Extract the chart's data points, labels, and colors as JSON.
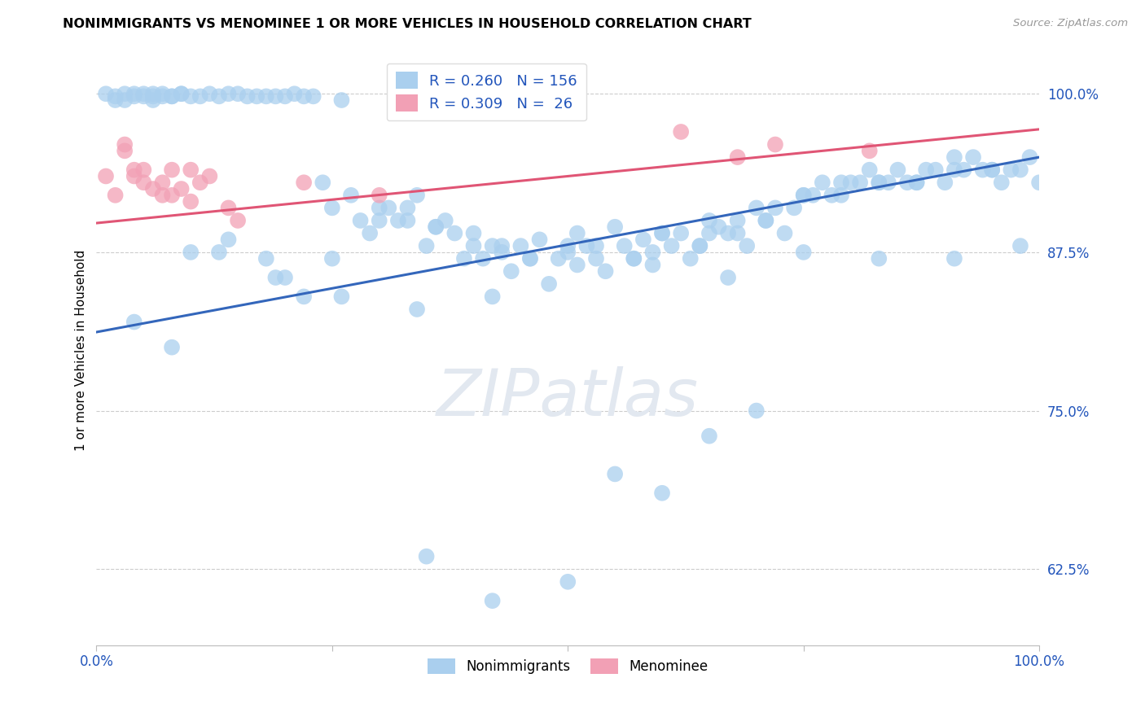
{
  "title": "NONIMMIGRANTS VS MENOMINEE 1 OR MORE VEHICLES IN HOUSEHOLD CORRELATION CHART",
  "source": "Source: ZipAtlas.com",
  "ylabel": "1 or more Vehicles in Household",
  "ytick_labels": [
    "62.5%",
    "75.0%",
    "87.5%",
    "100.0%"
  ],
  "ytick_values": [
    0.625,
    0.75,
    0.875,
    1.0
  ],
  "xrange": [
    0.0,
    1.0
  ],
  "yrange": [
    0.565,
    1.03
  ],
  "blue_R": 0.26,
  "blue_N": 156,
  "pink_R": 0.309,
  "pink_N": 26,
  "blue_color": "#aacfee",
  "pink_color": "#f2a0b5",
  "line_blue": "#3366bb",
  "line_pink": "#e05575",
  "watermark": "ZIPatlas",
  "legend_label_blue": "Nonimmigrants",
  "legend_label_pink": "Menominee",
  "blue_line_x": [
    0.0,
    1.0
  ],
  "blue_line_y": [
    0.812,
    0.95
  ],
  "pink_line_x": [
    0.0,
    1.0
  ],
  "pink_line_y": [
    0.898,
    0.972
  ],
  "blue_x": [
    0.01,
    0.02,
    0.03,
    0.04,
    0.04,
    0.05,
    0.06,
    0.06,
    0.07,
    0.07,
    0.08,
    0.09,
    0.1,
    0.12,
    0.14,
    0.15,
    0.17,
    0.18,
    0.2,
    0.22,
    0.24,
    0.25,
    0.27,
    0.28,
    0.29,
    0.3,
    0.31,
    0.32,
    0.33,
    0.34,
    0.35,
    0.36,
    0.37,
    0.38,
    0.39,
    0.4,
    0.41,
    0.42,
    0.43,
    0.44,
    0.45,
    0.46,
    0.47,
    0.48,
    0.49,
    0.5,
    0.51,
    0.52,
    0.53,
    0.54,
    0.55,
    0.56,
    0.57,
    0.58,
    0.59,
    0.6,
    0.61,
    0.62,
    0.63,
    0.64,
    0.65,
    0.65,
    0.66,
    0.67,
    0.68,
    0.69,
    0.7,
    0.71,
    0.72,
    0.73,
    0.74,
    0.75,
    0.76,
    0.77,
    0.78,
    0.79,
    0.8,
    0.81,
    0.82,
    0.83,
    0.84,
    0.85,
    0.86,
    0.87,
    0.88,
    0.89,
    0.9,
    0.91,
    0.92,
    0.93,
    0.94,
    0.95,
    0.96,
    0.97,
    0.98,
    0.99,
    1.0,
    0.02,
    0.03,
    0.05,
    0.06,
    0.08,
    0.09,
    0.11,
    0.13,
    0.16,
    0.19,
    0.21,
    0.23,
    0.26,
    0.3,
    0.33,
    0.36,
    0.4,
    0.43,
    0.46,
    0.5,
    0.53,
    0.57,
    0.6,
    0.64,
    0.68,
    0.71,
    0.75,
    0.79,
    0.83,
    0.87,
    0.91,
    0.95,
    0.04,
    0.08,
    0.13,
    0.19,
    0.26,
    0.34,
    0.42,
    0.51,
    0.59,
    0.67,
    0.75,
    0.83,
    0.91,
    0.98,
    0.35,
    0.42,
    0.5,
    0.55,
    0.6,
    0.65,
    0.7,
    0.1,
    0.14,
    0.18,
    0.2,
    0.22,
    0.25
  ],
  "blue_y": [
    1.0,
    0.995,
    1.0,
    0.998,
    1.0,
    1.0,
    0.998,
    0.995,
    1.0,
    0.998,
    0.998,
    1.0,
    0.998,
    1.0,
    1.0,
    1.0,
    0.998,
    0.998,
    0.998,
    0.998,
    0.93,
    0.91,
    0.92,
    0.9,
    0.89,
    0.91,
    0.91,
    0.9,
    0.91,
    0.92,
    0.88,
    0.895,
    0.9,
    0.89,
    0.87,
    0.88,
    0.87,
    0.88,
    0.88,
    0.86,
    0.88,
    0.87,
    0.885,
    0.85,
    0.87,
    0.875,
    0.89,
    0.88,
    0.87,
    0.86,
    0.895,
    0.88,
    0.87,
    0.885,
    0.875,
    0.89,
    0.88,
    0.89,
    0.87,
    0.88,
    0.9,
    0.89,
    0.895,
    0.89,
    0.9,
    0.88,
    0.91,
    0.9,
    0.91,
    0.89,
    0.91,
    0.92,
    0.92,
    0.93,
    0.92,
    0.93,
    0.93,
    0.93,
    0.94,
    0.93,
    0.93,
    0.94,
    0.93,
    0.93,
    0.94,
    0.94,
    0.93,
    0.95,
    0.94,
    0.95,
    0.94,
    0.94,
    0.93,
    0.94,
    0.94,
    0.95,
    0.93,
    0.998,
    0.995,
    0.998,
    1.0,
    0.998,
    1.0,
    0.998,
    0.998,
    0.998,
    0.998,
    1.0,
    0.998,
    0.995,
    0.9,
    0.9,
    0.895,
    0.89,
    0.875,
    0.87,
    0.88,
    0.88,
    0.87,
    0.89,
    0.88,
    0.89,
    0.9,
    0.92,
    0.92,
    0.93,
    0.93,
    0.94,
    0.94,
    0.82,
    0.8,
    0.875,
    0.855,
    0.84,
    0.83,
    0.84,
    0.865,
    0.865,
    0.855,
    0.875,
    0.87,
    0.87,
    0.88,
    0.635,
    0.6,
    0.615,
    0.7,
    0.685,
    0.73,
    0.75,
    0.875,
    0.885,
    0.87,
    0.855,
    0.84,
    0.87
  ],
  "pink_x": [
    0.01,
    0.02,
    0.03,
    0.03,
    0.04,
    0.04,
    0.05,
    0.05,
    0.06,
    0.07,
    0.07,
    0.08,
    0.08,
    0.09,
    0.1,
    0.1,
    0.11,
    0.12,
    0.14,
    0.15,
    0.22,
    0.3,
    0.62,
    0.72,
    0.82,
    0.68
  ],
  "pink_y": [
    0.935,
    0.92,
    0.955,
    0.96,
    0.935,
    0.94,
    0.93,
    0.94,
    0.925,
    0.92,
    0.93,
    0.92,
    0.94,
    0.925,
    0.915,
    0.94,
    0.93,
    0.935,
    0.91,
    0.9,
    0.93,
    0.92,
    0.97,
    0.96,
    0.955,
    0.95
  ]
}
